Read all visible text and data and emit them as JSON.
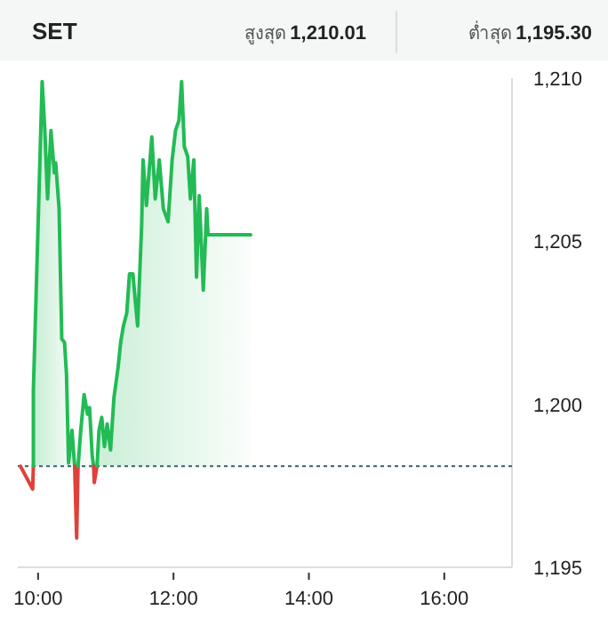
{
  "chart_data": {
    "type": "line",
    "title": "SET",
    "annotations": [
      "สูงสุด 1,210.01",
      "ต่ำสุด 1,195.30"
    ],
    "xlim": [
      9.7,
      17.0
    ],
    "xticks": [
      {
        "value": 10,
        "label": "10:00"
      },
      {
        "value": 12,
        "label": "12:00"
      },
      {
        "value": 14,
        "label": "14:00"
      },
      {
        "value": 16,
        "label": "16:00"
      }
    ],
    "ylim": [
      1195,
      1210
    ],
    "yticks": [
      {
        "value": 1195,
        "label": "1,195"
      },
      {
        "value": 1200,
        "label": "1,200"
      },
      {
        "value": 1205,
        "label": "1,205"
      },
      {
        "value": 1210,
        "label": "1,210"
      }
    ],
    "grid": false,
    "marker": "none",
    "line_style": "solid",
    "ref_lines": [
      {
        "axis": "y",
        "value": 1198.1,
        "color": "#2f5f6f",
        "line_style": "dotted"
      }
    ],
    "series": [
      {
        "type": "line",
        "color": "#e0403a",
        "x": [
          9.74,
          9.92,
          9.93
        ],
        "values": [
          1198.1,
          1197.4,
          1198.1
        ]
      },
      {
        "type": "area",
        "color": "#22bb55",
        "x": [
          9.93,
          9.93,
          10.06,
          10.1,
          10.14,
          10.19,
          10.24,
          10.26,
          10.31,
          10.35,
          10.39,
          10.42,
          10.45,
          10.5,
          10.54
        ],
        "values": [
          1198.1,
          1200.4,
          1209.9,
          1208.4,
          1206.3,
          1208.4,
          1207.1,
          1207.4,
          1206.0,
          1202.0,
          1201.9,
          1200.9,
          1198.2,
          1199.2,
          1198.1
        ]
      },
      {
        "type": "line",
        "color": "#e0403a",
        "x": [
          10.54,
          10.57,
          10.59
        ],
        "values": [
          1198.1,
          1195.9,
          1198.1
        ]
      },
      {
        "type": "area",
        "color": "#22bb55",
        "x": [
          10.59,
          10.63,
          10.68,
          10.73,
          10.76,
          10.8,
          10.82
        ],
        "values": [
          1198.1,
          1199.2,
          1200.3,
          1199.7,
          1199.9,
          1198.4,
          1198.1
        ]
      },
      {
        "type": "line",
        "color": "#e0403a",
        "x": [
          10.82,
          10.83,
          10.87
        ],
        "values": [
          1198.1,
          1197.6,
          1198.1
        ]
      },
      {
        "type": "area",
        "color": "#22bb55",
        "x": [
          10.87,
          10.9,
          10.94,
          10.98,
          11.02,
          11.07,
          11.12,
          11.18,
          11.22,
          11.26,
          11.31,
          11.35,
          11.4,
          11.47,
          11.53,
          11.55,
          11.6,
          11.68,
          11.73,
          11.79,
          11.85,
          11.92,
          11.98,
          12.03,
          12.08,
          12.12,
          12.16,
          12.21,
          12.25,
          12.3,
          12.34,
          12.38,
          12.44,
          12.49,
          12.51,
          13.14
        ],
        "values": [
          1198.1,
          1199.2,
          1199.6,
          1198.7,
          1199.4,
          1198.6,
          1200.2,
          1201.1,
          1201.9,
          1202.4,
          1202.8,
          1204.0,
          1204.0,
          1202.4,
          1205.5,
          1207.5,
          1206.1,
          1208.2,
          1206.3,
          1207.5,
          1206.0,
          1205.6,
          1207.5,
          1208.4,
          1208.7,
          1209.9,
          1207.9,
          1207.6,
          1206.3,
          1207.5,
          1203.9,
          1206.4,
          1203.5,
          1206.0,
          1205.2,
          1205.2
        ]
      }
    ]
  }
}
